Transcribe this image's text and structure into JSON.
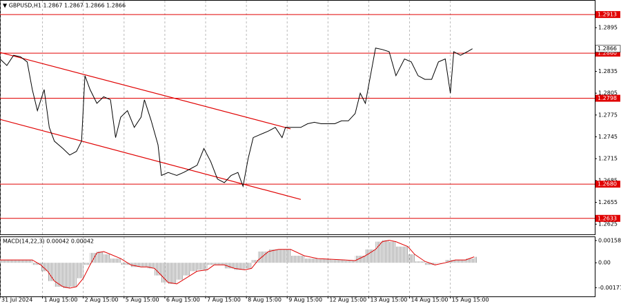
{
  "chart_data": [
    {
      "type": "line",
      "title": "▼ GBPUSD,H1  1.2867 1.2867 1.2866 1.2866",
      "color": "#000000",
      "grid": "x",
      "x": [
        0,
        4,
        8,
        12,
        16,
        19,
        22,
        26,
        29,
        32,
        37,
        41,
        45,
        48,
        50,
        53,
        57,
        61,
        65,
        68,
        71,
        75,
        79,
        83,
        85,
        89,
        93,
        95,
        99,
        104,
        108,
        112,
        116,
        120,
        124,
        128,
        132,
        136,
        140,
        143,
        146,
        149,
        153,
        158,
        162,
        166,
        168,
        173,
        177,
        181,
        185,
        189,
        193,
        197,
        201,
        205,
        209,
        212,
        215,
        218,
        221,
        225,
        229,
        233,
        238,
        242,
        246,
        250,
        254,
        258,
        262,
        265,
        267,
        271,
        275,
        278
      ],
      "values": [
        1.2852,
        1.2843,
        1.2857,
        1.2855,
        1.2848,
        1.281,
        1.2781,
        1.281,
        1.2758,
        1.2739,
        1.2729,
        1.272,
        1.2725,
        1.2739,
        1.2829,
        1.281,
        1.2791,
        1.28,
        1.2796,
        1.2744,
        1.2772,
        1.2781,
        1.2758,
        1.2772,
        1.2796,
        1.2767,
        1.2734,
        1.2692,
        1.2696,
        1.2692,
        1.2696,
        1.2701,
        1.2706,
        1.2729,
        1.2711,
        1.2687,
        1.2682,
        1.2692,
        1.2696,
        1.2677,
        1.2715,
        1.2744,
        1.2748,
        1.2753,
        1.2758,
        1.2744,
        1.2758,
        1.2758,
        1.2758,
        1.2763,
        1.2765,
        1.2763,
        1.2763,
        1.2763,
        1.2767,
        1.2767,
        1.2777,
        1.2805,
        1.2791,
        1.2829,
        1.2867,
        1.2865,
        1.2862,
        1.2829,
        1.2852,
        1.2848,
        1.2829,
        1.2824,
        1.2824,
        1.2848,
        1.2852,
        1.2805,
        1.2862,
        1.2857,
        1.2862,
        1.2866
      ],
      "xlim": [
        0,
        350
      ],
      "xticks": [
        {
          "value": 0,
          "label": "31 Jul 2024"
        },
        {
          "value": 25,
          "label": "1 Aug 15:00"
        },
        {
          "value": 49,
          "label": "2 Aug 15:00"
        },
        {
          "value": 73,
          "label": "5 Aug 15:00"
        },
        {
          "value": 97,
          "label": "6 Aug 15:00"
        },
        {
          "value": 121,
          "label": "7 Aug 15:00"
        },
        {
          "value": 145,
          "label": "8 Aug 15:00"
        },
        {
          "value": 169,
          "label": "9 Aug 15:00"
        },
        {
          "value": 193,
          "label": "12 Aug 15:00"
        },
        {
          "value": 217,
          "label": "13 Aug 15:00"
        },
        {
          "value": 241,
          "label": "14 Aug 15:00"
        },
        {
          "value": 265,
          "label": "15 Aug 15:00"
        }
      ],
      "ylim": [
        1.2611,
        1.2933
      ],
      "yticks": [
        1.2895,
        1.2835,
        1.2805,
        1.2775,
        1.2745,
        1.2715,
        1.2685,
        1.2655,
        1.2625
      ],
      "levels": [
        1.2913,
        {
          "value": 1.286,
          "label": "1.2860"
        },
        1.2798,
        {
          "value": 1.268,
          "label": "1.2680"
        },
        1.2633
      ],
      "level_color": "#e00000",
      "last_price": 1.2866,
      "trendlines": [
        {
          "x": [
            0,
            171
          ],
          "y": [
            1.2861,
            1.2756
          ]
        },
        {
          "x": [
            0,
            177
          ],
          "y": [
            1.2769,
            1.2659
          ]
        }
      ]
    },
    {
      "type": "bar",
      "title": "MACD(14,22,3) 0.00042 0.00042",
      "color": "#a0a0a0",
      "x": [
        0,
        16,
        19,
        24,
        28,
        32,
        37,
        41,
        45,
        49,
        53,
        57,
        61,
        65,
        71,
        77,
        83,
        87,
        91,
        95,
        99,
        104,
        108,
        112,
        116,
        122,
        126,
        132,
        138,
        144,
        148,
        152,
        158,
        164,
        171,
        179,
        187,
        195,
        203,
        209,
        215,
        221,
        225,
        229,
        233,
        240,
        244,
        250,
        256,
        262,
        268,
        274,
        279
      ],
      "values": [
        0.0002,
        0.0002,
        -0.00015,
        -0.0006,
        -0.0013,
        -0.0017,
        -0.0018,
        -0.0017,
        -0.0011,
        -0.00015,
        0.0007,
        0.0008,
        0.0006,
        0.0003,
        -0.00015,
        -0.0003,
        -0.0003,
        -0.0004,
        -0.0009,
        -0.0014,
        -0.0015,
        -0.0012,
        -0.0009,
        -0.0006,
        -0.0005,
        -0.00015,
        -0.00015,
        -0.0004,
        -0.0005,
        -0.0004,
        0.0002,
        0.0008,
        0.00095,
        0.00095,
        0.0005,
        0.0003,
        0.00025,
        0.0002,
        0.00015,
        0.0005,
        0.00095,
        0.0015,
        0.0016,
        0.0015,
        0.00115,
        0.0006,
        0.0001,
        -0.00015,
        0,
        0.0002,
        0.0002,
        0.0003,
        0.00042
      ],
      "signal": {
        "color": "#e00000",
        "values": [
          0.0002,
          0.0002,
          0.0002,
          -0.00015,
          -0.0006,
          -0.0013,
          -0.0017,
          -0.0018,
          -0.0017,
          -0.0011,
          -0.00015,
          0.0007,
          0.0008,
          0.0006,
          0.0003,
          -0.00015,
          -0.0003,
          -0.0003,
          -0.0004,
          -0.0009,
          -0.0014,
          -0.0015,
          -0.0012,
          -0.0009,
          -0.0006,
          -0.0005,
          -0.00015,
          -0.00015,
          -0.0004,
          -0.0005,
          -0.0004,
          0.0002,
          0.0008,
          0.00095,
          0.00095,
          0.0005,
          0.0003,
          0.00025,
          0.0002,
          0.00015,
          0.0005,
          0.00095,
          0.0015,
          0.0016,
          0.0015,
          0.00115,
          0.0006,
          0.0001,
          -0.00015,
          0,
          0.0002,
          0.0002,
          0.00042
        ]
      },
      "ylim": [
        -0.00239,
        0.00187
      ],
      "yticks": [
        0.00158,
        {
          "value": 0,
          "label": "0.00"
        },
        -0.00177
      ]
    }
  ]
}
